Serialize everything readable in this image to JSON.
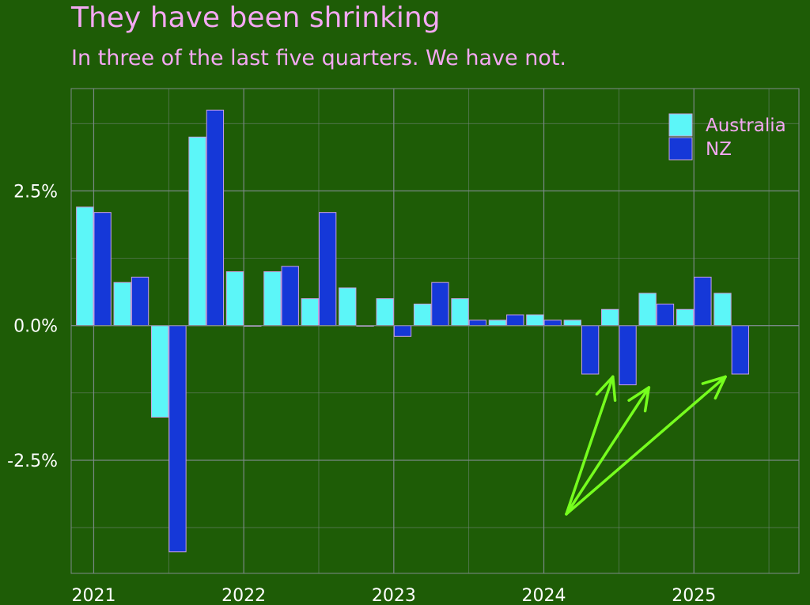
{
  "title": "They have been shrinking",
  "subtitle": "In three of the last five quarters. We have not.",
  "colors": {
    "background": "#1e5c06",
    "australia": "#5cf6f8",
    "nz": "#1538d8",
    "bar_edge": "#c9a0e0",
    "grid": "#7d8a8a",
    "annotation": "#76ff1e",
    "text": "#ffffff",
    "title": "#f4a8f2"
  },
  "chart_data": {
    "type": "bar",
    "title": "They have been shrinking",
    "subtitle": "In three of the last five quarters. We have not.",
    "xlabel": "",
    "ylabel": "",
    "ylim": [
      -4.6,
      4.4
    ],
    "y_ticks": [
      2.5,
      0.0,
      -2.5
    ],
    "y_tick_labels": [
      "2.5%",
      "0.0%",
      "-2.5%"
    ],
    "x_ticks": [
      2021,
      2022,
      2023,
      2024,
      2025
    ],
    "x_tick_labels": [
      "2021",
      "2022",
      "2023",
      "2024",
      "2025"
    ],
    "x_range": [
      2020.85,
      2025.7
    ],
    "grid": true,
    "legend_position": "top-right",
    "categories": [
      "2021 Q1",
      "2021 Q2",
      "2021 Q3",
      "2021 Q4",
      "2022 Q1",
      "2022 Q2",
      "2022 Q3",
      "2022 Q4",
      "2023 Q1",
      "2023 Q2",
      "2023 Q3",
      "2023 Q4",
      "2024 Q1",
      "2024 Q2",
      "2024 Q3",
      "2024 Q4",
      "2025 Q1",
      "2025 Q2"
    ],
    "x": [
      2021.0,
      2021.25,
      2021.5,
      2021.75,
      2022.0,
      2022.25,
      2022.5,
      2022.75,
      2023.0,
      2023.25,
      2023.5,
      2023.75,
      2024.0,
      2024.25,
      2024.5,
      2024.75,
      2025.0,
      2025.25
    ],
    "series": [
      {
        "name": "Australia",
        "values": [
          2.2,
          0.8,
          -1.7,
          3.5,
          1.0,
          1.0,
          0.5,
          0.7,
          0.5,
          0.4,
          0.5,
          0.1,
          0.2,
          0.1,
          0.3,
          0.6,
          0.3,
          0.6
        ]
      },
      {
        "name": "NZ",
        "values": [
          2.1,
          0.9,
          -4.2,
          4.0,
          0.0,
          1.1,
          2.1,
          0.0,
          -0.2,
          0.8,
          0.1,
          0.2,
          0.1,
          -0.9,
          -1.1,
          0.4,
          0.9,
          -0.9
        ]
      }
    ],
    "annotations": [
      {
        "type": "arrows",
        "from": [
          2024.15,
          -3.5
        ],
        "to": [
          [
            2024.46,
            -0.95
          ],
          [
            2024.7,
            -1.15
          ],
          [
            2025.21,
            -0.95
          ]
        ]
      }
    ]
  }
}
